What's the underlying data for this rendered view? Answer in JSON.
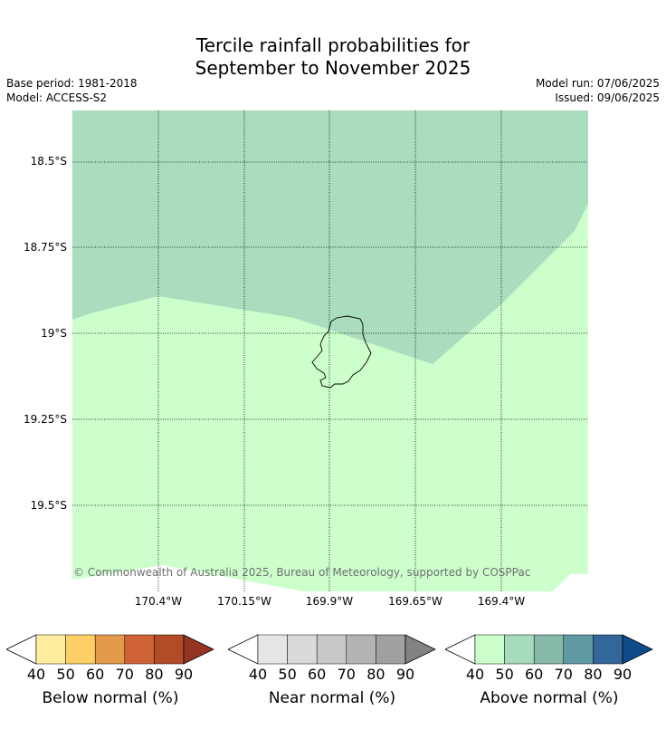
{
  "title_line1": "Tercile rainfall probabilities for",
  "title_line2": "September to November 2025",
  "base_period": "Base period: 1981-2018",
  "model": "Model: ACCESS-S2",
  "model_run": "Model run: 07/06/2025",
  "issued": "Issued: 09/06/2025",
  "lat_labels": [
    "18.5°S",
    "18.75°S",
    "19°S",
    "19.25°S",
    "19.5°S"
  ],
  "lon_labels": [
    "170.4°W",
    "170.15°W",
    "169.9°W",
    "169.65°W",
    "169.4°W"
  ],
  "copyright": "© Commonwealth of Australia 2025, Bureau of Meteorology, supported by COSPPac",
  "colors": {
    "above_50_60": "#a6dbbd",
    "above_40_50": "#ccffcc",
    "coast": "#000000"
  },
  "legends": [
    {
      "title": "Below normal (%)",
      "ticks": [
        "40",
        "50",
        "60",
        "70",
        "80",
        "90"
      ],
      "colors": [
        "#ffeea0",
        "#fecf66",
        "#e39a4a",
        "#cf6235",
        "#b34b28",
        "#953423"
      ]
    },
    {
      "title": "Near normal (%)",
      "ticks": [
        "40",
        "50",
        "60",
        "70",
        "80",
        "90"
      ],
      "colors": [
        "#e6e6e6",
        "#d9d9d9",
        "#c8c8c8",
        "#b3b3b3",
        "#a0a0a0",
        "#838383"
      ]
    },
    {
      "title": "Above normal (%)",
      "ticks": [
        "40",
        "50",
        "60",
        "70",
        "80",
        "90"
      ],
      "colors": [
        "#ccffcc",
        "#a6dbbd",
        "#87b9aa",
        "#5f9aa3",
        "#336699",
        "#0e4b88"
      ]
    }
  ]
}
